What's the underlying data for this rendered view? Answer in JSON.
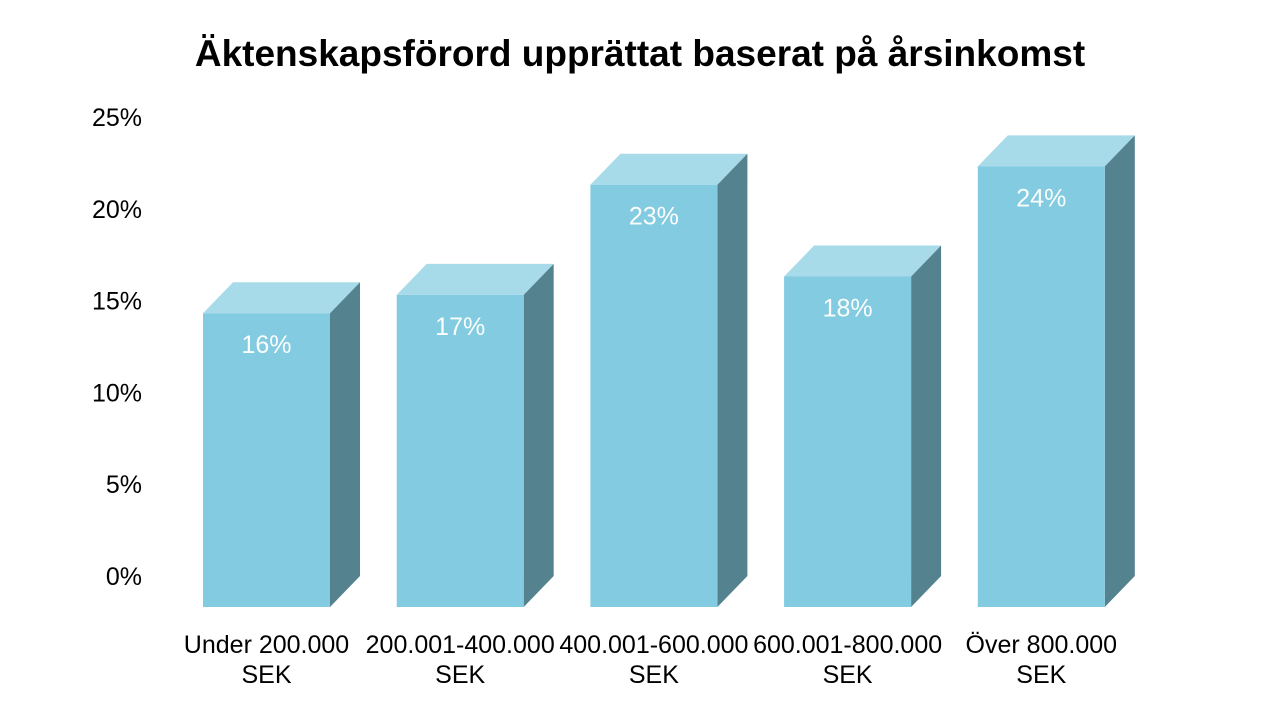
{
  "page": {
    "background": "#ffffff"
  },
  "chart_data": {
    "type": "bar",
    "style": "3d-oblique-columns",
    "title": "Äktenskapsförord upprättat baserat på årsinkomst",
    "categories": [
      "Under 200.000 SEK",
      "200.001-400.000 SEK",
      "400.001-600.000 SEK",
      "600.001-800.000 SEK",
      "Över 800.000 SEK"
    ],
    "category_lines": [
      [
        "Under 200.000",
        "SEK"
      ],
      [
        "200.001-400.000",
        "SEK"
      ],
      [
        "400.001-600.000",
        "SEK"
      ],
      [
        "600.001-800.000",
        "SEK"
      ],
      [
        "Över 800.000",
        "SEK"
      ]
    ],
    "values": [
      16,
      17,
      23,
      18,
      24
    ],
    "value_labels": [
      "16%",
      "17%",
      "23%",
      "18%",
      "24%"
    ],
    "xlabel": "",
    "ylabel": "",
    "yticks": [
      "0%",
      "5%",
      "10%",
      "15%",
      "20%",
      "25%"
    ],
    "ytick_values": [
      0,
      5,
      10,
      15,
      20,
      25
    ],
    "ylim": [
      0,
      25
    ],
    "grid": false,
    "legend": false,
    "colors": {
      "bar_front": "#82CBE0",
      "bar_top": "#A8DBEA",
      "bar_side": "#55828F",
      "value_label": "#FBFDFD",
      "axis_text": "#000000",
      "title_text": "#000000",
      "background": "#FFFFFF"
    }
  }
}
